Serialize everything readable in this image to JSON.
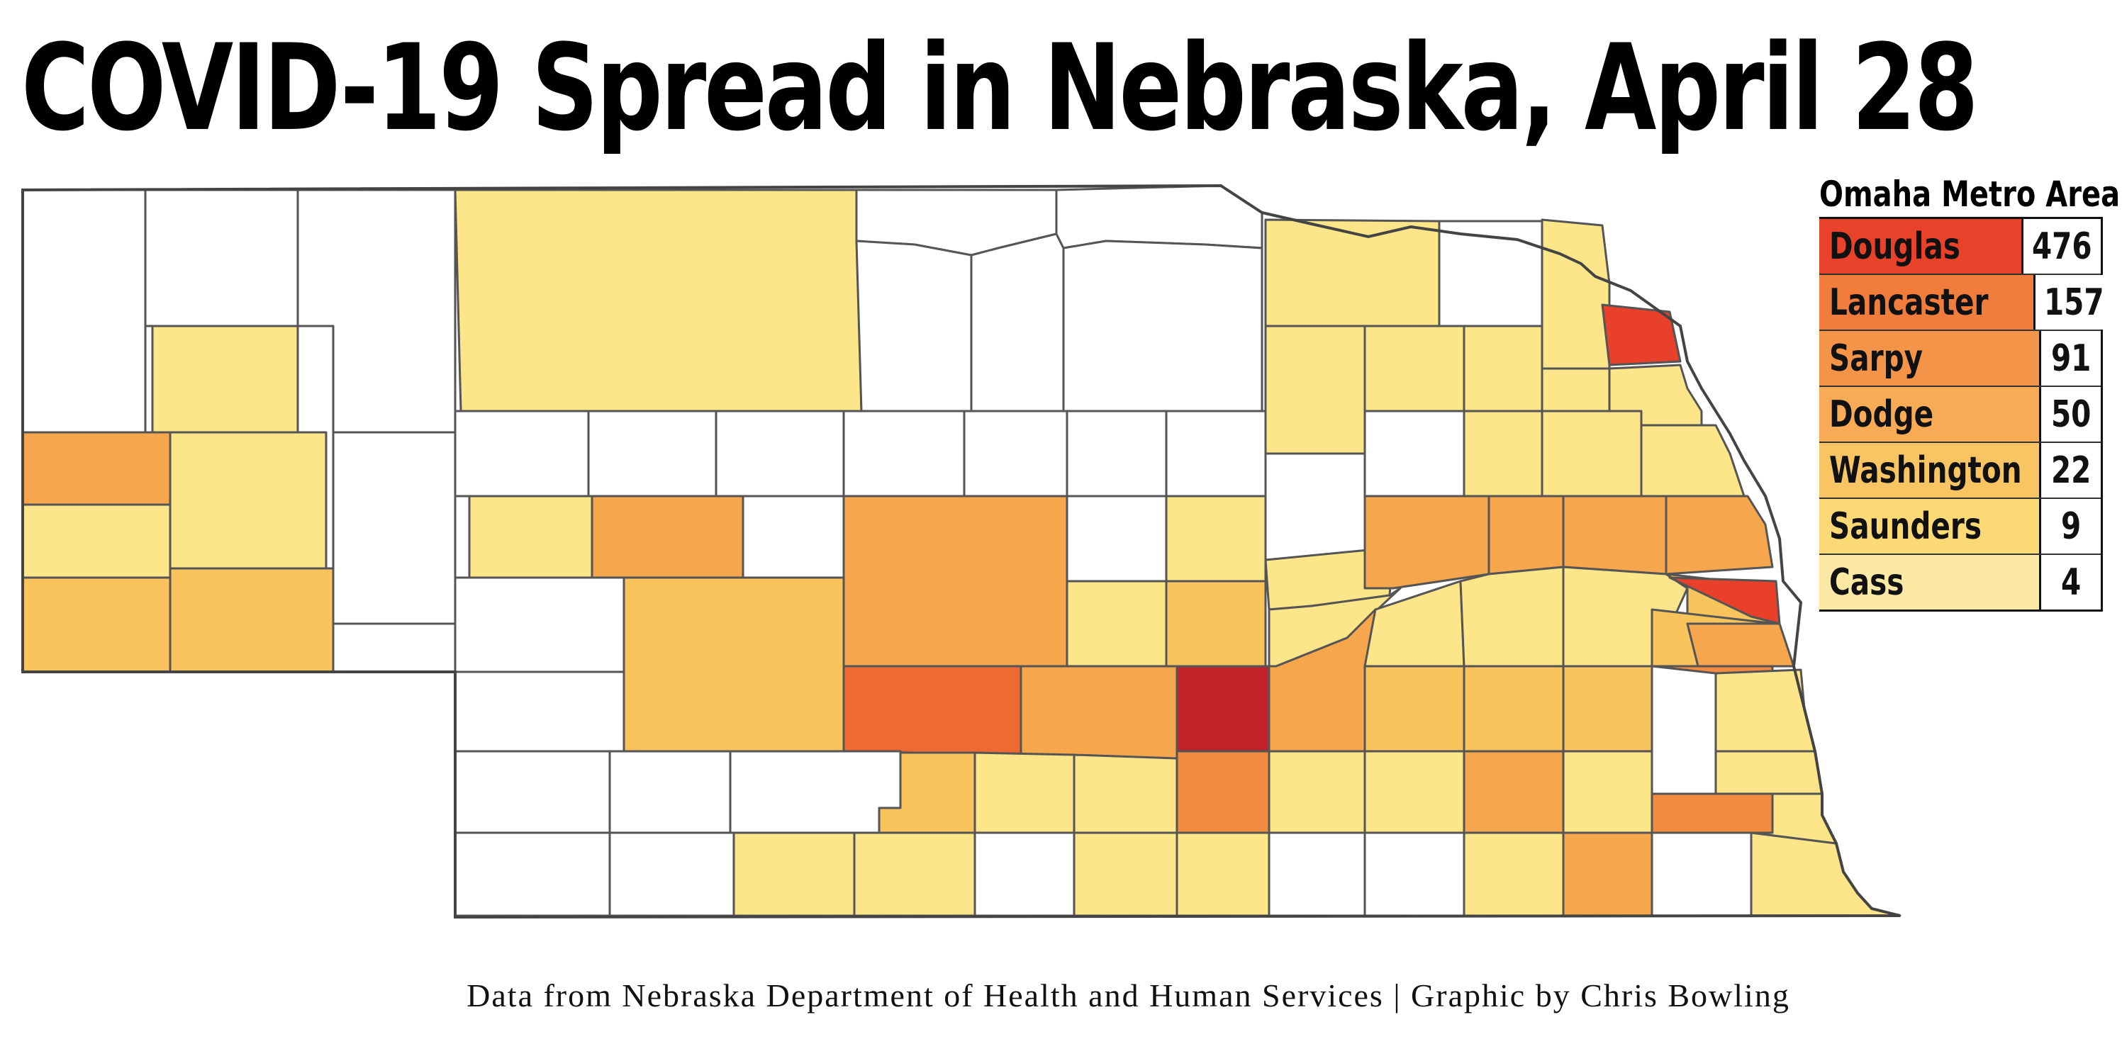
{
  "title": "COVID-19 Spread in Nebraska, April 28",
  "legend": {
    "title": "Omaha Metro Area",
    "rows": [
      {
        "name": "Douglas",
        "count": "476",
        "color": "#e8422a"
      },
      {
        "name": "Lancaster",
        "count": "157",
        "color": "#f07d3c"
      },
      {
        "name": "Sarpy",
        "count": "91",
        "color": "#f49448"
      },
      {
        "name": "Dodge",
        "count": "50",
        "color": "#f7ab55"
      },
      {
        "name": "Washington",
        "count": "22",
        "color": "#f9c562"
      },
      {
        "name": "Saunders",
        "count": "9",
        "color": "#fbd975"
      },
      {
        "name": "Cass",
        "count": "4",
        "color": "#fce9a4"
      }
    ]
  },
  "credit": "Data from Nebraska Department of Health and Human Services | Graphic by Chris Bowling",
  "colors": {
    "none": "#ffffff",
    "lightest": "#fde58a",
    "light": "#fbd66d",
    "mid": "#f9c45c",
    "orange": "#f6a64c",
    "dark_orange": "#f28c40",
    "red_orange": "#ee6a32",
    "red": "#e8402a",
    "dark_red": "#c0222a",
    "border": "#555555"
  }
}
